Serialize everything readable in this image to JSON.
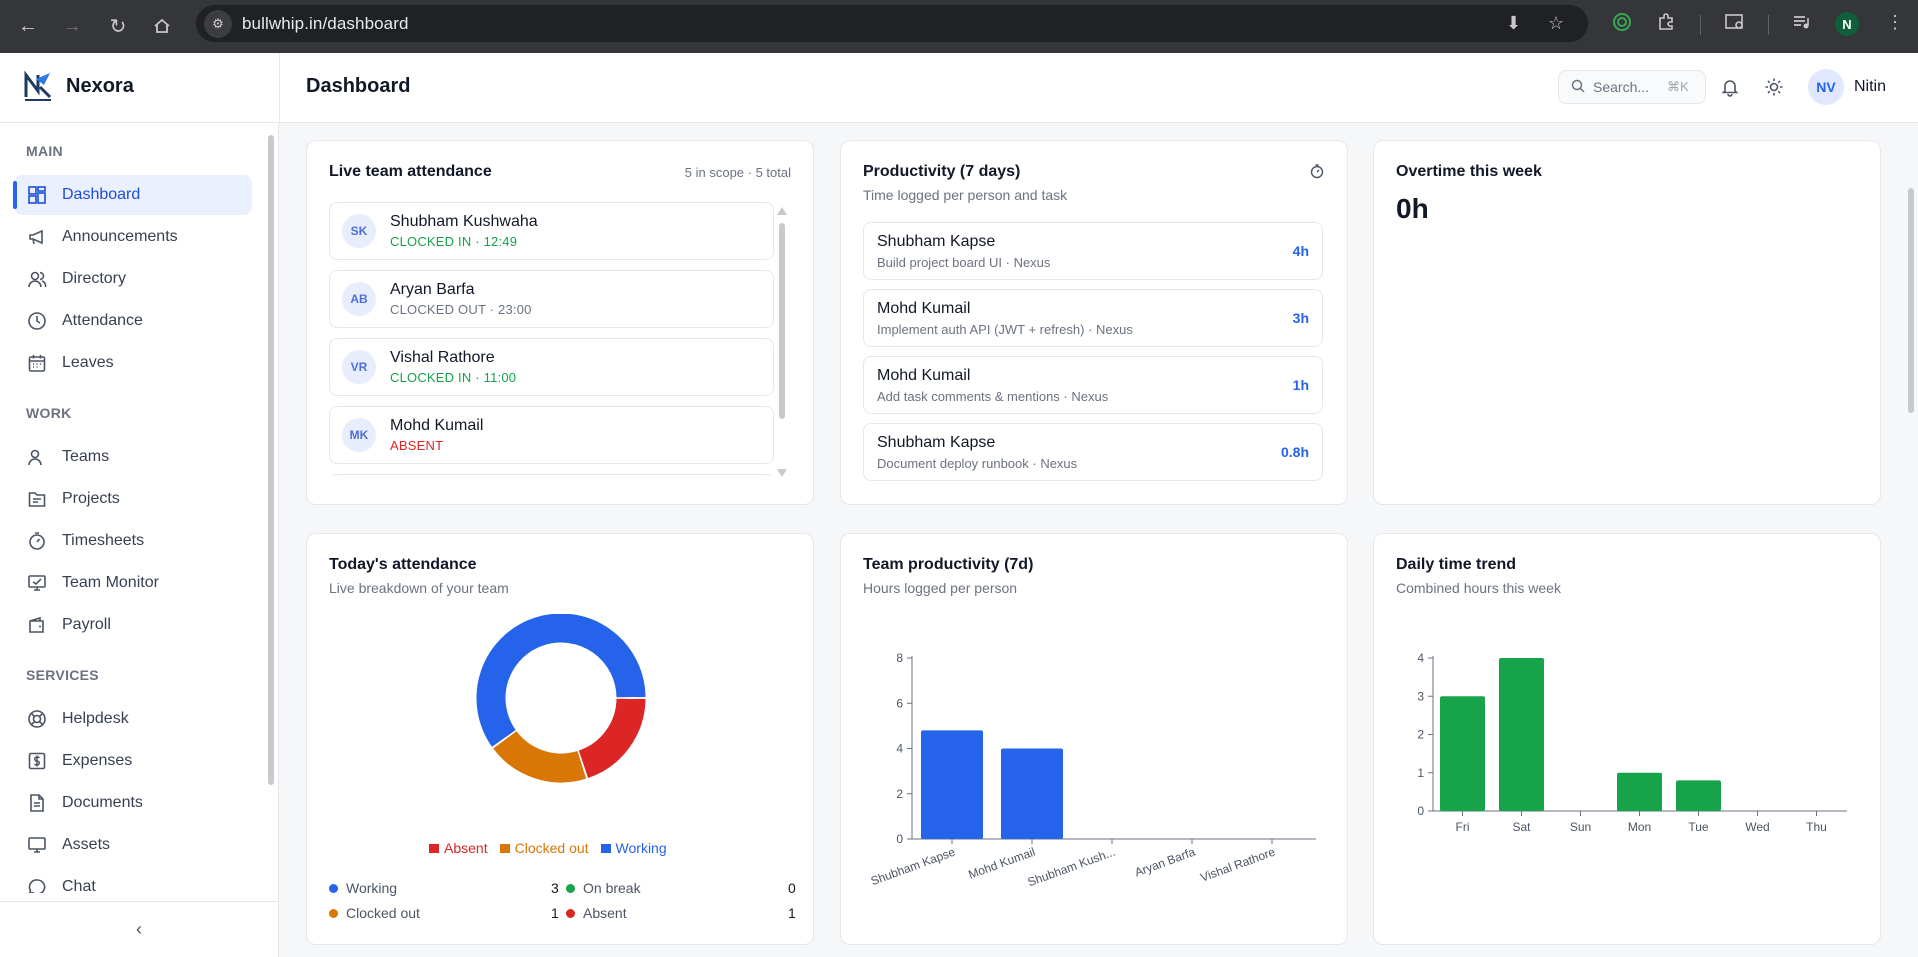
{
  "browser": {
    "url": "bullwhip.in/dashboard",
    "profile_initial": "N"
  },
  "app": {
    "brand": "Nexora",
    "page_title": "Dashboard",
    "search_placeholder": "Search...",
    "search_shortcut": "⌘K",
    "user_initials": "NV",
    "user_name": "Nitin"
  },
  "sidebar": {
    "sections": [
      {
        "title": "MAIN",
        "items": [
          {
            "label": "Dashboard",
            "icon": "grid-icon",
            "active": true
          },
          {
            "label": "Announcements",
            "icon": "megaphone-icon"
          },
          {
            "label": "Directory",
            "icon": "users-icon"
          },
          {
            "label": "Attendance",
            "icon": "clock-icon"
          },
          {
            "label": "Leaves",
            "icon": "calendar-icon"
          }
        ]
      },
      {
        "title": "WORK",
        "items": [
          {
            "label": "Teams",
            "icon": "team-icon"
          },
          {
            "label": "Projects",
            "icon": "folder-icon"
          },
          {
            "label": "Timesheets",
            "icon": "stopwatch-icon"
          },
          {
            "label": "Team Monitor",
            "icon": "monitor-icon"
          },
          {
            "label": "Payroll",
            "icon": "wallet-icon"
          }
        ]
      },
      {
        "title": "SERVICES",
        "items": [
          {
            "label": "Helpdesk",
            "icon": "lifebuoy-icon"
          },
          {
            "label": "Expenses",
            "icon": "dollar-icon"
          },
          {
            "label": "Documents",
            "icon": "document-icon"
          },
          {
            "label": "Assets",
            "icon": "desktop-icon"
          },
          {
            "label": "Chat",
            "icon": "chat-icon"
          }
        ]
      }
    ],
    "collapse_glyph": "‹"
  },
  "live_attendance": {
    "title": "Live team attendance",
    "scope": "5 in scope · 5 total",
    "rows": [
      {
        "initials": "SK",
        "name": "Shubham Kushwaha",
        "status": "CLOCKED IN · 12:49",
        "state": "in"
      },
      {
        "initials": "AB",
        "name": "Aryan Barfa",
        "status": "CLOCKED OUT · 23:00",
        "state": "out"
      },
      {
        "initials": "VR",
        "name": "Vishal Rathore",
        "status": "CLOCKED IN · 11:00",
        "state": "in"
      },
      {
        "initials": "MK",
        "name": "Mohd Kumail",
        "status": "ABSENT",
        "state": "absent"
      }
    ]
  },
  "productivity": {
    "title": "Productivity (7 days)",
    "subtitle": "Time logged per person and task",
    "rows": [
      {
        "name": "Shubham Kapse",
        "task": "Build project board UI · Nexus",
        "hours": "4h"
      },
      {
        "name": "Mohd Kumail",
        "task": "Implement auth API (JWT + refresh) · Nexus",
        "hours": "3h"
      },
      {
        "name": "Mohd Kumail",
        "task": "Add task comments & mentions · Nexus",
        "hours": "1h"
      },
      {
        "name": "Shubham Kapse",
        "task": "Document deploy runbook · Nexus",
        "hours": "0.8h"
      }
    ]
  },
  "overtime": {
    "title": "Overtime this week",
    "value": "0h"
  },
  "todays_attendance": {
    "title": "Today's attendance",
    "subtitle": "Live breakdown of your team",
    "stats": [
      {
        "label": "Working",
        "value": "3",
        "color": "#2563eb"
      },
      {
        "label": "On break",
        "value": "0",
        "color": "#16a34a"
      },
      {
        "label": "Clocked out",
        "value": "1",
        "color": "#d97706"
      },
      {
        "label": "Absent",
        "value": "1",
        "color": "#dc2626"
      }
    ]
  },
  "team_productivity": {
    "title": "Team productivity (7d)",
    "subtitle": "Hours logged per person"
  },
  "daily_trend": {
    "title": "Daily time trend",
    "subtitle": "Combined hours this week"
  },
  "chart_data": [
    {
      "type": "pie",
      "legend": [
        "Absent",
        "Clocked out",
        "Working"
      ],
      "legend_placement": "bottom",
      "series": [
        {
          "values": [
            1,
            1,
            3
          ]
        }
      ],
      "colors": [
        "#dc2626",
        "#d97706",
        "#2563eb"
      ],
      "title": ""
    },
    {
      "type": "bar",
      "categories": [
        "Shubham Kapse",
        "Mohd Kumail",
        "Shubham Kush...",
        "Aryan Barfa",
        "Vishal Rathore"
      ],
      "values": [
        4.8,
        4.0,
        0,
        0,
        0
      ],
      "ylim": [
        0,
        8
      ],
      "yticks": [
        0,
        2,
        4,
        6,
        8
      ],
      "color": "#2563eb",
      "grid": false,
      "title": ""
    },
    {
      "type": "bar",
      "categories": [
        "Fri",
        "Sat",
        "Sun",
        "Mon",
        "Tue",
        "Wed",
        "Thu"
      ],
      "values": [
        3.0,
        4.0,
        0,
        1.0,
        0.8,
        0,
        0
      ],
      "ylim": [
        0,
        4
      ],
      "yticks": [
        0,
        1,
        2,
        3,
        4
      ],
      "color": "#16a34a",
      "grid": false,
      "title": ""
    }
  ]
}
